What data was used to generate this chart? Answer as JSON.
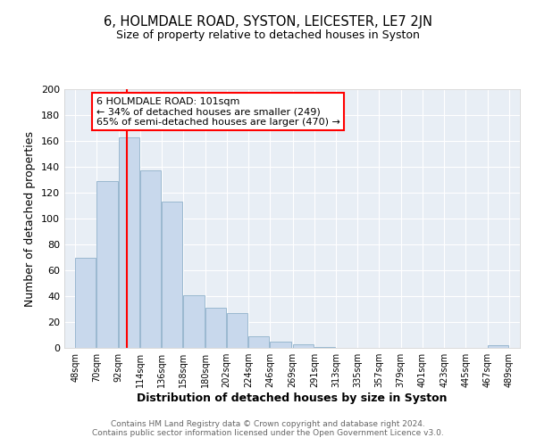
{
  "title": "6, HOLMDALE ROAD, SYSTON, LEICESTER, LE7 2JN",
  "subtitle": "Size of property relative to detached houses in Syston",
  "xlabel": "Distribution of detached houses by size in Syston",
  "ylabel": "Number of detached properties",
  "bar_color": "#c8d8ec",
  "bar_edge_color": "#9ab8d0",
  "plot_bg_color": "#e8eef5",
  "vline_x": 101,
  "vline_color": "red",
  "annotation_title": "6 HOLMDALE ROAD: 101sqm",
  "annotation_line1": "← 34% of detached houses are smaller (249)",
  "annotation_line2": "65% of semi-detached houses are larger (470) →",
  "annotation_box_edge": "red",
  "bins_left": [
    48,
    70,
    92,
    114,
    136,
    158,
    180,
    202,
    224,
    246,
    269,
    291,
    313,
    335,
    357,
    379,
    401,
    423,
    445,
    467
  ],
  "bin_width": 22,
  "heights": [
    70,
    129,
    163,
    137,
    113,
    41,
    31,
    27,
    9,
    5,
    3,
    1,
    0,
    0,
    0,
    0,
    0,
    0,
    0,
    2
  ],
  "xlim_left": 37,
  "xlim_right": 500,
  "ylim_top": 200,
  "yticks": [
    0,
    20,
    40,
    60,
    80,
    100,
    120,
    140,
    160,
    180,
    200
  ],
  "xtick_labels": [
    "48sqm",
    "70sqm",
    "92sqm",
    "114sqm",
    "136sqm",
    "158sqm",
    "180sqm",
    "202sqm",
    "224sqm",
    "246sqm",
    "269sqm",
    "291sqm",
    "313sqm",
    "335sqm",
    "357sqm",
    "379sqm",
    "401sqm",
    "423sqm",
    "445sqm",
    "467sqm",
    "489sqm"
  ],
  "xtick_positions": [
    48,
    70,
    92,
    114,
    136,
    158,
    180,
    202,
    224,
    246,
    269,
    291,
    313,
    335,
    357,
    379,
    401,
    423,
    445,
    467,
    489
  ],
  "footer1": "Contains HM Land Registry data © Crown copyright and database right 2024.",
  "footer2": "Contains public sector information licensed under the Open Government Licence v3.0."
}
